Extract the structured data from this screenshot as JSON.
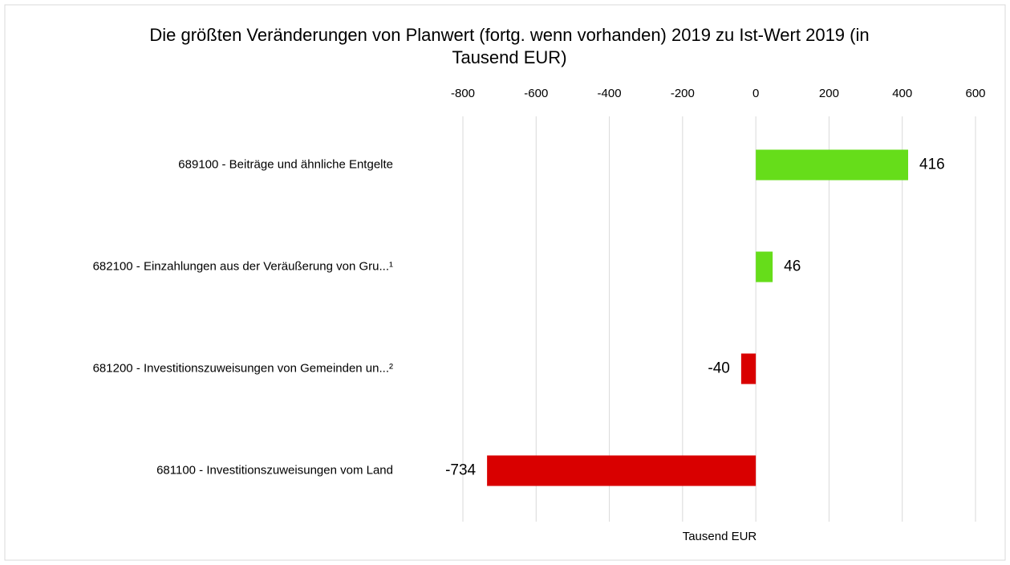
{
  "chart_data": {
    "type": "barh",
    "title": "Die größten Veränderungen von  Planwert (fortg. wenn vorhanden) 2019  zu  Ist-Wert 2019  (in Tausend EUR)",
    "categories": [
      "689100 - Beiträge und ähnliche Entgelte",
      "682100 - Einzahlungen aus der Veräußerung von Gru...¹",
      "681200 - Investitionszuweisungen von Gemeinden un...²",
      "681100 - Investitionszuweisungen vom Land"
    ],
    "values": [
      416,
      46,
      -40,
      -734
    ],
    "colors": [
      "#66dd1a",
      "#66dd1a",
      "#d90000",
      "#d90000"
    ],
    "xlabel": "Tausend EUR",
    "xlim": [
      -800,
      600
    ],
    "xticks": [
      -800,
      -600,
      -400,
      -200,
      0,
      200,
      400,
      600
    ],
    "grid": true
  }
}
